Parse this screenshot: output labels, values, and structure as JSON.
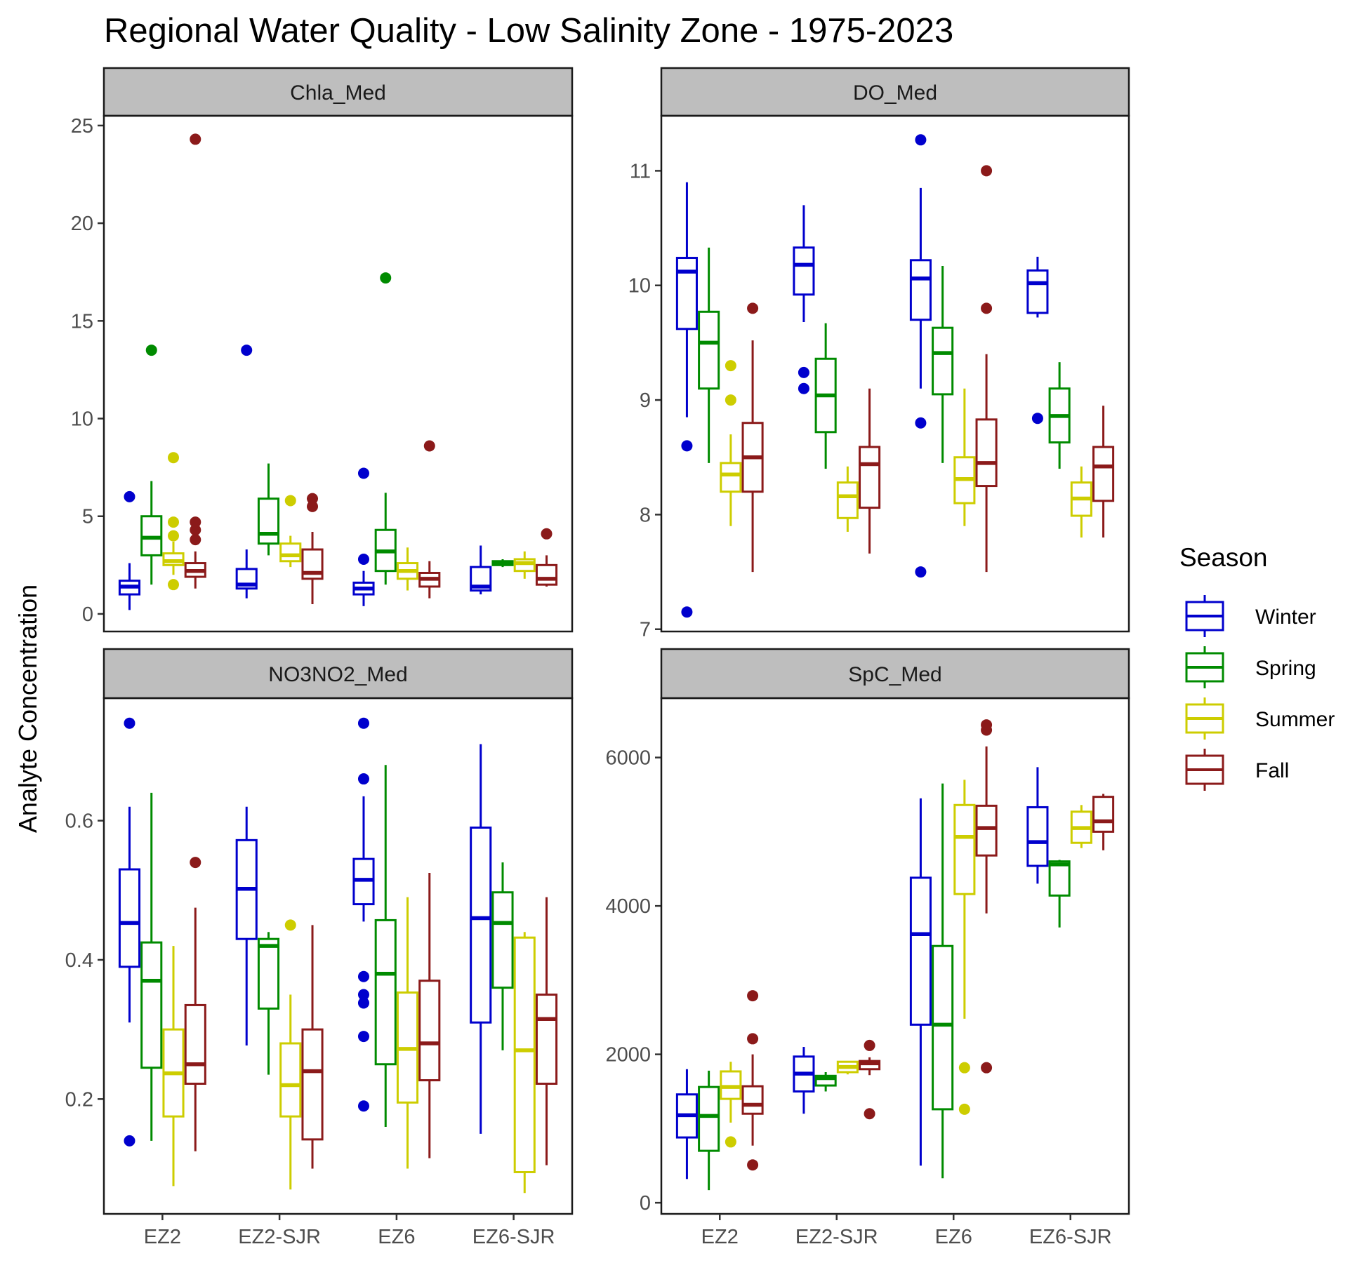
{
  "title": "Regional Water Quality - Low Salinity Zone - 1975-2023",
  "ylabel": "Analyte Concentration",
  "xlabel": "",
  "legend": {
    "title": "Season",
    "position": "right",
    "entries": [
      {
        "name": "Winter",
        "color": "#0000CD"
      },
      {
        "name": "Spring",
        "color": "#008B00"
      },
      {
        "name": "Summer",
        "color": "#CDCD00"
      },
      {
        "name": "Fall",
        "color": "#8B1A1A"
      }
    ]
  },
  "chart_data": [
    {
      "type": "box",
      "facet": "Chla_Med",
      "categories": [
        "EZ2",
        "EZ2-SJR",
        "EZ6",
        "EZ6-SJR"
      ],
      "ylim": [
        -0.9,
        25.5
      ],
      "yticks": [
        0,
        5,
        10,
        15,
        20,
        25
      ],
      "series": [
        {
          "name": "Winter",
          "boxes": [
            {
              "min": 0.2,
              "q1": 1.0,
              "median": 1.4,
              "q3": 1.7,
              "max": 2.6,
              "outliers": [
                6.0
              ]
            },
            {
              "min": 0.8,
              "q1": 1.3,
              "median": 1.5,
              "q3": 2.3,
              "max": 3.3,
              "outliers": [
                13.5
              ]
            },
            {
              "min": 0.4,
              "q1": 1.0,
              "median": 1.3,
              "q3": 1.6,
              "max": 2.2,
              "outliers": [
                2.8,
                7.2
              ]
            },
            {
              "min": 1.0,
              "q1": 1.2,
              "median": 1.4,
              "q3": 2.4,
              "max": 3.5,
              "outliers": []
            }
          ]
        },
        {
          "name": "Spring",
          "boxes": [
            {
              "min": 1.5,
              "q1": 3.0,
              "median": 3.9,
              "q3": 5.0,
              "max": 6.8,
              "outliers": [
                13.5
              ]
            },
            {
              "min": 3.0,
              "q1": 3.6,
              "median": 4.1,
              "q3": 5.9,
              "max": 7.7,
              "outliers": []
            },
            {
              "min": 1.5,
              "q1": 2.2,
              "median": 3.2,
              "q3": 4.3,
              "max": 6.2,
              "outliers": [
                17.2
              ]
            },
            {
              "min": 2.4,
              "q1": 2.5,
              "median": 2.6,
              "q3": 2.7,
              "max": 2.8,
              "outliers": []
            }
          ]
        },
        {
          "name": "Summer",
          "boxes": [
            {
              "min": 2.0,
              "q1": 2.5,
              "median": 2.7,
              "q3": 3.1,
              "max": 3.7,
              "outliers": [
                1.5,
                4.0,
                4.7,
                8.0
              ]
            },
            {
              "min": 2.4,
              "q1": 2.7,
              "median": 3.0,
              "q3": 3.6,
              "max": 4.0,
              "outliers": [
                5.8
              ]
            },
            {
              "min": 1.2,
              "q1": 1.8,
              "median": 2.2,
              "q3": 2.6,
              "max": 3.4,
              "outliers": []
            },
            {
              "min": 1.8,
              "q1": 2.2,
              "median": 2.6,
              "q3": 2.8,
              "max": 3.2,
              "outliers": []
            }
          ]
        },
        {
          "name": "Fall",
          "boxes": [
            {
              "min": 1.3,
              "q1": 1.9,
              "median": 2.2,
              "q3": 2.6,
              "max": 3.2,
              "outliers": [
                3.8,
                4.3,
                4.7,
                24.3
              ]
            },
            {
              "min": 0.5,
              "q1": 1.8,
              "median": 2.1,
              "q3": 3.3,
              "max": 4.2,
              "outliers": [
                5.5,
                5.9
              ]
            },
            {
              "min": 0.8,
              "q1": 1.4,
              "median": 1.8,
              "q3": 2.1,
              "max": 2.7,
              "outliers": [
                8.6
              ]
            },
            {
              "min": 1.4,
              "q1": 1.5,
              "median": 1.8,
              "q3": 2.5,
              "max": 3.0,
              "outliers": [
                4.1
              ]
            }
          ]
        }
      ]
    },
    {
      "type": "box",
      "facet": "DO_Med",
      "categories": [
        "EZ2",
        "EZ2-SJR",
        "EZ6",
        "EZ6-SJR"
      ],
      "ylim": [
        6.98,
        11.48
      ],
      "yticks": [
        7,
        8,
        9,
        10,
        11
      ],
      "series": [
        {
          "name": "Winter",
          "boxes": [
            {
              "min": 8.85,
              "q1": 9.62,
              "median": 10.12,
              "q3": 10.24,
              "max": 10.9,
              "outliers": [
                7.15,
                8.6
              ]
            },
            {
              "min": 9.68,
              "q1": 9.92,
              "median": 10.18,
              "q3": 10.33,
              "max": 10.7,
              "outliers": [
                9.1,
                9.24
              ]
            },
            {
              "min": 9.1,
              "q1": 9.7,
              "median": 10.06,
              "q3": 10.22,
              "max": 10.85,
              "outliers": [
                7.5,
                8.8,
                11.27
              ]
            },
            {
              "min": 9.72,
              "q1": 9.76,
              "median": 10.02,
              "q3": 10.13,
              "max": 10.25,
              "outliers": [
                8.84
              ]
            }
          ]
        },
        {
          "name": "Spring",
          "boxes": [
            {
              "min": 8.45,
              "q1": 9.1,
              "median": 9.5,
              "q3": 9.77,
              "max": 10.33,
              "outliers": []
            },
            {
              "min": 8.4,
              "q1": 8.72,
              "median": 9.04,
              "q3": 9.36,
              "max": 9.67,
              "outliers": []
            },
            {
              "min": 8.45,
              "q1": 9.05,
              "median": 9.41,
              "q3": 9.63,
              "max": 10.17,
              "outliers": []
            },
            {
              "min": 8.4,
              "q1": 8.63,
              "median": 8.86,
              "q3": 9.1,
              "max": 9.33,
              "outliers": []
            }
          ]
        },
        {
          "name": "Summer",
          "boxes": [
            {
              "min": 7.9,
              "q1": 8.2,
              "median": 8.35,
              "q3": 8.45,
              "max": 8.7,
              "outliers": [
                9.0,
                9.3
              ]
            },
            {
              "min": 7.85,
              "q1": 7.97,
              "median": 8.16,
              "q3": 8.28,
              "max": 8.42,
              "outliers": []
            },
            {
              "min": 7.9,
              "q1": 8.1,
              "median": 8.31,
              "q3": 8.5,
              "max": 9.1,
              "outliers": []
            },
            {
              "min": 7.8,
              "q1": 7.99,
              "median": 8.14,
              "q3": 8.28,
              "max": 8.42,
              "outliers": []
            }
          ]
        },
        {
          "name": "Fall",
          "boxes": [
            {
              "min": 7.5,
              "q1": 8.2,
              "median": 8.5,
              "q3": 8.8,
              "max": 9.52,
              "outliers": [
                9.8
              ]
            },
            {
              "min": 7.66,
              "q1": 8.06,
              "median": 8.44,
              "q3": 8.59,
              "max": 9.1,
              "outliers": []
            },
            {
              "min": 7.5,
              "q1": 8.25,
              "median": 8.45,
              "q3": 8.83,
              "max": 9.4,
              "outliers": [
                9.8,
                11.0
              ]
            },
            {
              "min": 7.8,
              "q1": 8.12,
              "median": 8.42,
              "q3": 8.59,
              "max": 8.95,
              "outliers": []
            }
          ]
        }
      ]
    },
    {
      "type": "box",
      "facet": "NO3NO2_Med",
      "categories": [
        "EZ2",
        "EZ2-SJR",
        "EZ6",
        "EZ6-SJR"
      ],
      "ylim": [
        0.035,
        0.776
      ],
      "yticks": [
        0.2,
        0.4,
        0.6
      ],
      "series": [
        {
          "name": "Winter",
          "boxes": [
            {
              "min": 0.31,
              "q1": 0.39,
              "median": 0.453,
              "q3": 0.53,
              "max": 0.62,
              "outliers": [
                0.14,
                0.74
              ]
            },
            {
              "min": 0.277,
              "q1": 0.43,
              "median": 0.502,
              "q3": 0.572,
              "max": 0.62,
              "outliers": []
            },
            {
              "min": 0.455,
              "q1": 0.48,
              "median": 0.515,
              "q3": 0.545,
              "max": 0.635,
              "outliers": [
                0.19,
                0.29,
                0.338,
                0.35,
                0.376,
                0.66,
                0.74
              ]
            },
            {
              "min": 0.15,
              "q1": 0.31,
              "median": 0.46,
              "q3": 0.59,
              "max": 0.71,
              "outliers": []
            }
          ]
        },
        {
          "name": "Spring",
          "boxes": [
            {
              "min": 0.14,
              "q1": 0.245,
              "median": 0.37,
              "q3": 0.425,
              "max": 0.64,
              "outliers": []
            },
            {
              "min": 0.235,
              "q1": 0.33,
              "median": 0.42,
              "q3": 0.43,
              "max": 0.44,
              "outliers": []
            },
            {
              "min": 0.16,
              "q1": 0.25,
              "median": 0.38,
              "q3": 0.457,
              "max": 0.68,
              "outliers": []
            },
            {
              "min": 0.27,
              "q1": 0.36,
              "median": 0.453,
              "q3": 0.497,
              "max": 0.54,
              "outliers": []
            }
          ]
        },
        {
          "name": "Summer",
          "boxes": [
            {
              "min": 0.075,
              "q1": 0.175,
              "median": 0.237,
              "q3": 0.3,
              "max": 0.42,
              "outliers": []
            },
            {
              "min": 0.07,
              "q1": 0.175,
              "median": 0.22,
              "q3": 0.28,
              "max": 0.35,
              "outliers": [
                0.45
              ]
            },
            {
              "min": 0.1,
              "q1": 0.195,
              "median": 0.272,
              "q3": 0.353,
              "max": 0.49,
              "outliers": []
            },
            {
              "min": 0.065,
              "q1": 0.095,
              "median": 0.27,
              "q3": 0.432,
              "max": 0.44,
              "outliers": []
            }
          ]
        },
        {
          "name": "Fall",
          "boxes": [
            {
              "min": 0.125,
              "q1": 0.222,
              "median": 0.25,
              "q3": 0.335,
              "max": 0.475,
              "outliers": [
                0.54
              ]
            },
            {
              "min": 0.1,
              "q1": 0.142,
              "median": 0.24,
              "q3": 0.3,
              "max": 0.45,
              "outliers": []
            },
            {
              "min": 0.115,
              "q1": 0.227,
              "median": 0.28,
              "q3": 0.37,
              "max": 0.525,
              "outliers": []
            },
            {
              "min": 0.105,
              "q1": 0.222,
              "median": 0.315,
              "q3": 0.35,
              "max": 0.49,
              "outliers": []
            }
          ]
        }
      ]
    },
    {
      "type": "box",
      "facet": "SpC_Med",
      "categories": [
        "EZ2",
        "EZ2-SJR",
        "EZ6",
        "EZ6-SJR"
      ],
      "ylim": [
        -150,
        6800
      ],
      "yticks": [
        0,
        2000,
        4000,
        6000
      ],
      "series": [
        {
          "name": "Winter",
          "boxes": [
            {
              "min": 320,
              "q1": 880,
              "median": 1180,
              "q3": 1460,
              "max": 1800,
              "outliers": []
            },
            {
              "min": 1200,
              "q1": 1500,
              "median": 1740,
              "q3": 1970,
              "max": 2100,
              "outliers": []
            },
            {
              "min": 500,
              "q1": 2400,
              "median": 3620,
              "q3": 4380,
              "max": 5450,
              "outliers": []
            },
            {
              "min": 4300,
              "q1": 4540,
              "median": 4860,
              "q3": 5330,
              "max": 5870,
              "outliers": []
            }
          ]
        },
        {
          "name": "Spring",
          "boxes": [
            {
              "min": 170,
              "q1": 700,
              "median": 1170,
              "q3": 1560,
              "max": 1780,
              "outliers": []
            },
            {
              "min": 1500,
              "q1": 1580,
              "median": 1680,
              "q3": 1710,
              "max": 1760,
              "outliers": []
            },
            {
              "min": 330,
              "q1": 1260,
              "median": 2400,
              "q3": 3460,
              "max": 5650,
              "outliers": []
            },
            {
              "min": 3710,
              "q1": 4140,
              "median": 4560,
              "q3": 4600,
              "max": 4620,
              "outliers": []
            }
          ]
        },
        {
          "name": "Summer",
          "boxes": [
            {
              "min": 1080,
              "q1": 1400,
              "median": 1560,
              "q3": 1770,
              "max": 1900,
              "outliers": [
                820
              ]
            },
            {
              "min": 1730,
              "q1": 1760,
              "median": 1830,
              "q3": 1900,
              "max": 1910,
              "outliers": []
            },
            {
              "min": 2480,
              "q1": 4160,
              "median": 4930,
              "q3": 5360,
              "max": 5700,
              "outliers": [
                1260,
                1820
              ]
            },
            {
              "min": 4780,
              "q1": 4850,
              "median": 5050,
              "q3": 5270,
              "max": 5360,
              "outliers": []
            }
          ]
        },
        {
          "name": "Fall",
          "boxes": [
            {
              "min": 770,
              "q1": 1200,
              "median": 1320,
              "q3": 1570,
              "max": 2000,
              "outliers": [
                510,
                2210,
                2790
              ]
            },
            {
              "min": 1720,
              "q1": 1800,
              "median": 1880,
              "q3": 1910,
              "max": 1960,
              "outliers": [
                1200,
                2120
              ]
            },
            {
              "min": 3900,
              "q1": 4680,
              "median": 5050,
              "q3": 5350,
              "max": 6150,
              "outliers": [
                1820,
                6370,
                6440
              ]
            },
            {
              "min": 4750,
              "q1": 5000,
              "median": 5140,
              "q3": 5470,
              "max": 5510,
              "outliers": []
            }
          ]
        }
      ]
    }
  ]
}
